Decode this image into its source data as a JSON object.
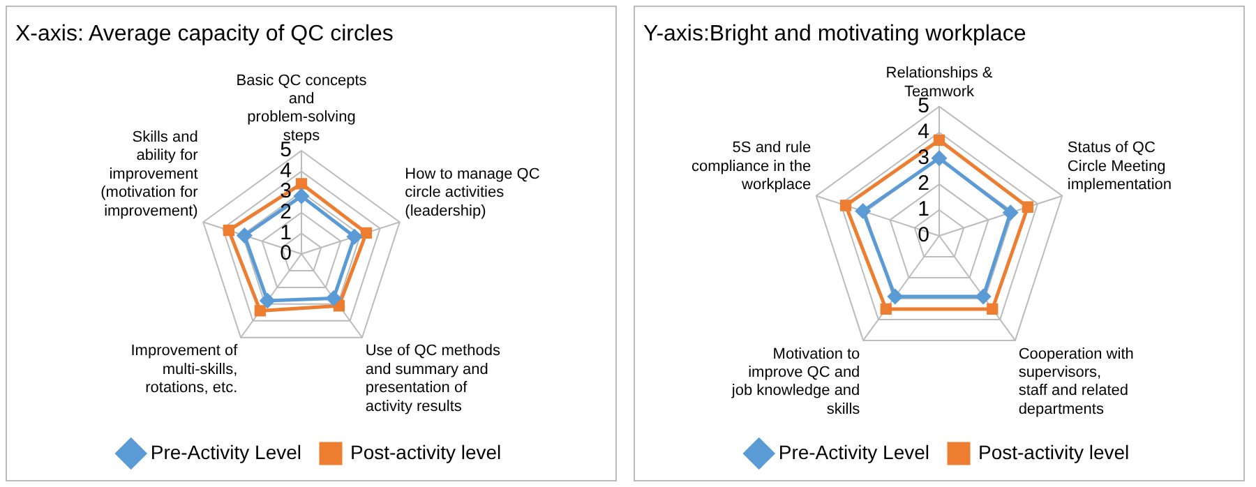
{
  "chart_data": [
    {
      "type": "radar",
      "title": "X-axis: Average capacity of QC circles",
      "categories": [
        "Basic QC concepts and problem-solving steps",
        "How to manage QC circle activities (leadership)",
        "Use of QC methods and summary and presentation of activity results",
        "Improvement of multi-skills, rotations, etc.",
        "Skills and ability for improvement (motivation for improvement)"
      ],
      "ylim": [
        0,
        5
      ],
      "yticks": [
        0,
        1,
        2,
        3,
        4,
        5
      ],
      "grid": true,
      "legend": "bottom",
      "series": [
        {
          "name": "Pre-Activity Level",
          "color": "#5b9bd5",
          "marker": "diamond",
          "values": [
            2.8,
            2.7,
            2.65,
            2.8,
            2.9
          ]
        },
        {
          "name": "Post-activity level",
          "color": "#ed7d31",
          "marker": "square",
          "values": [
            3.4,
            3.3,
            3.1,
            3.4,
            3.7
          ]
        }
      ]
    },
    {
      "type": "radar",
      "title": "Y-axis:Bright and motivating workplace",
      "categories": [
        "Relationships & Teamwork",
        "Status of QC Circle Meeting implementation",
        "Cooperation with supervisors, staff and related departments",
        "Motivation to improve QC and job knowledge and skills",
        "5S and rule compliance in the workplace"
      ],
      "ylim": [
        0,
        5
      ],
      "yticks": [
        0,
        1,
        2,
        3,
        4,
        5
      ],
      "grid": true,
      "legend": "bottom",
      "series": [
        {
          "name": "Pre-Activity Level",
          "color": "#5b9bd5",
          "marker": "diamond",
          "values": [
            3.0,
            2.9,
            2.9,
            2.9,
            3.1
          ]
        },
        {
          "name": "Post-activity level",
          "color": "#ed7d31",
          "marker": "square",
          "values": [
            3.7,
            3.6,
            3.5,
            3.5,
            3.8
          ]
        }
      ]
    }
  ]
}
